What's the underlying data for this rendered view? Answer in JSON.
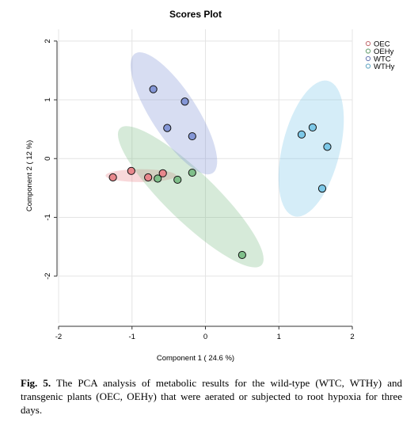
{
  "chart_data": {
    "type": "scatter",
    "title": "Scores Plot",
    "xlabel": "Component 1 ( 24.6 %)",
    "ylabel": "Component 2 ( 12 %)",
    "xlim": [
      -2.0,
      2.0
    ],
    "ylim": [
      -2.8,
      2.2
    ],
    "xticks": [
      -2,
      -1,
      0,
      1,
      2
    ],
    "yticks": [
      2,
      1,
      0,
      -1,
      -2
    ],
    "xtick_labels": [
      "-2",
      "-1",
      "0",
      "1",
      "2"
    ],
    "ytick_labels": [
      "2",
      "1",
      "0",
      "-1",
      "-2"
    ],
    "grid": true,
    "legend_position": "top-right",
    "series": [
      {
        "name": "OEC",
        "color": "#e8878c",
        "ellipse": {
          "center": [
            -0.88,
            -0.29
          ],
          "rx": 0.48,
          "ry": 0.11,
          "angle_deg": 0
        },
        "points": [
          [
            -1.26,
            -0.32
          ],
          [
            -1.01,
            -0.21
          ],
          [
            -0.78,
            -0.32
          ],
          [
            -0.58,
            -0.25
          ]
        ]
      },
      {
        "name": "OEHy",
        "color": "#7fbf8a",
        "ellipse": {
          "center": [
            -0.2,
            -0.65
          ],
          "rx": 1.34,
          "ry": 0.42,
          "angle_deg": -44
        },
        "points": [
          [
            -0.65,
            -0.34
          ],
          [
            -0.38,
            -0.36
          ],
          [
            -0.18,
            -0.24
          ],
          [
            0.5,
            -1.64
          ]
        ]
      },
      {
        "name": "WTC",
        "color": "#8496d6",
        "ellipse": {
          "center": [
            -0.43,
            0.77
          ],
          "rx": 0.97,
          "ry": 0.39,
          "angle_deg": -57
        },
        "points": [
          [
            -0.71,
            1.18
          ],
          [
            -0.28,
            0.97
          ],
          [
            -0.52,
            0.52
          ],
          [
            -0.18,
            0.38
          ]
        ]
      },
      {
        "name": "WTHy",
        "color": "#7cc8e8",
        "ellipse": {
          "center": [
            1.44,
            0.17
          ],
          "rx": 0.95,
          "ry": 0.49,
          "angle_deg": -104
        },
        "points": [
          [
            1.31,
            0.41
          ],
          [
            1.46,
            0.53
          ],
          [
            1.66,
            0.2
          ],
          [
            1.59,
            -0.51
          ]
        ]
      }
    ]
  },
  "caption": {
    "label": "Fig. 5.",
    "text": " The PCA analysis of metabolic results for the wild-type (WTC, WTHy) and transgenic plants (OEC, OEHy) that were aerated or subjected to root hypoxia for three days."
  }
}
